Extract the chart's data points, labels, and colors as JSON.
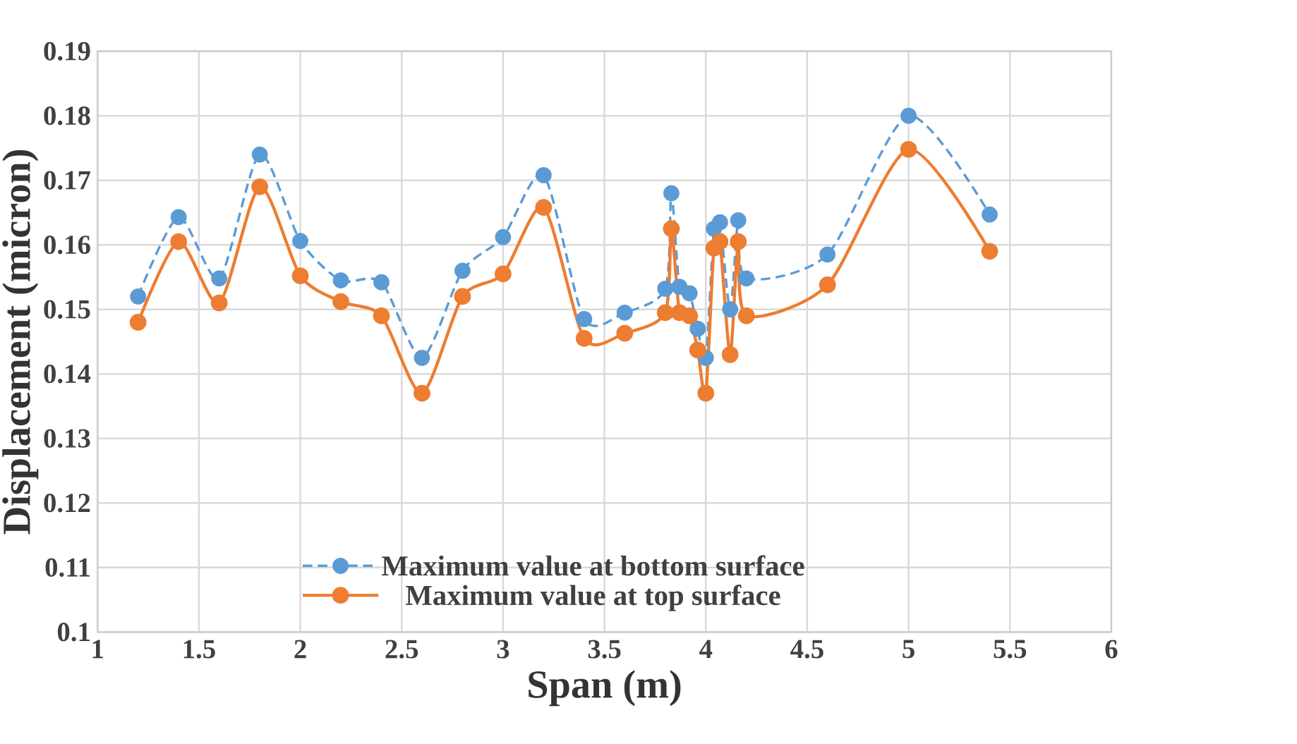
{
  "chart_data": {
    "type": "line",
    "xlabel": "Span (m)",
    "ylabel": "Displacement (micron)",
    "xlim": [
      1,
      6
    ],
    "xticks": [
      1,
      1.5,
      2,
      2.5,
      3,
      3.5,
      4,
      4.5,
      5,
      5.5,
      6
    ],
    "ylim": [
      0.1,
      0.19
    ],
    "yticks": [
      0.1,
      0.11,
      0.12,
      0.13,
      0.14,
      0.15,
      0.16,
      0.17,
      0.18,
      0.19
    ],
    "grid": true,
    "legend": "bottom",
    "marker": "circle",
    "x": [
      1.2,
      1.4,
      1.6,
      1.8,
      2.0,
      2.2,
      2.4,
      2.6,
      2.8,
      3.0,
      3.2,
      3.4,
      3.6,
      3.8,
      3.83,
      3.87,
      3.92,
      3.96,
      4.0,
      4.04,
      4.07,
      4.12,
      4.16,
      4.2,
      4.6,
      5.0,
      5.4
    ],
    "series": [
      {
        "name": "Maximum value at bottom surface",
        "color": "#5b9bd5",
        "line_style": "dashed",
        "values": [
          0.152,
          0.1643,
          0.1548,
          0.174,
          0.1606,
          0.1545,
          0.1542,
          0.1425,
          0.156,
          0.1612,
          0.1708,
          0.1485,
          0.1495,
          0.1532,
          0.168,
          0.1535,
          0.1525,
          0.147,
          0.1425,
          0.1625,
          0.1635,
          0.15,
          0.1638,
          0.1548,
          0.1585,
          0.18,
          0.1647
        ]
      },
      {
        "name": "Maximum value at top surface",
        "color": "#ed7d31",
        "line_style": "solid",
        "values": [
          0.148,
          0.1605,
          0.151,
          0.169,
          0.1552,
          0.1512,
          0.149,
          0.137,
          0.152,
          0.1555,
          0.1658,
          0.1455,
          0.1463,
          0.1495,
          0.1625,
          0.1495,
          0.149,
          0.1437,
          0.137,
          0.1595,
          0.1605,
          0.143,
          0.1605,
          0.149,
          0.1538,
          0.1748,
          0.159
        ]
      }
    ]
  }
}
